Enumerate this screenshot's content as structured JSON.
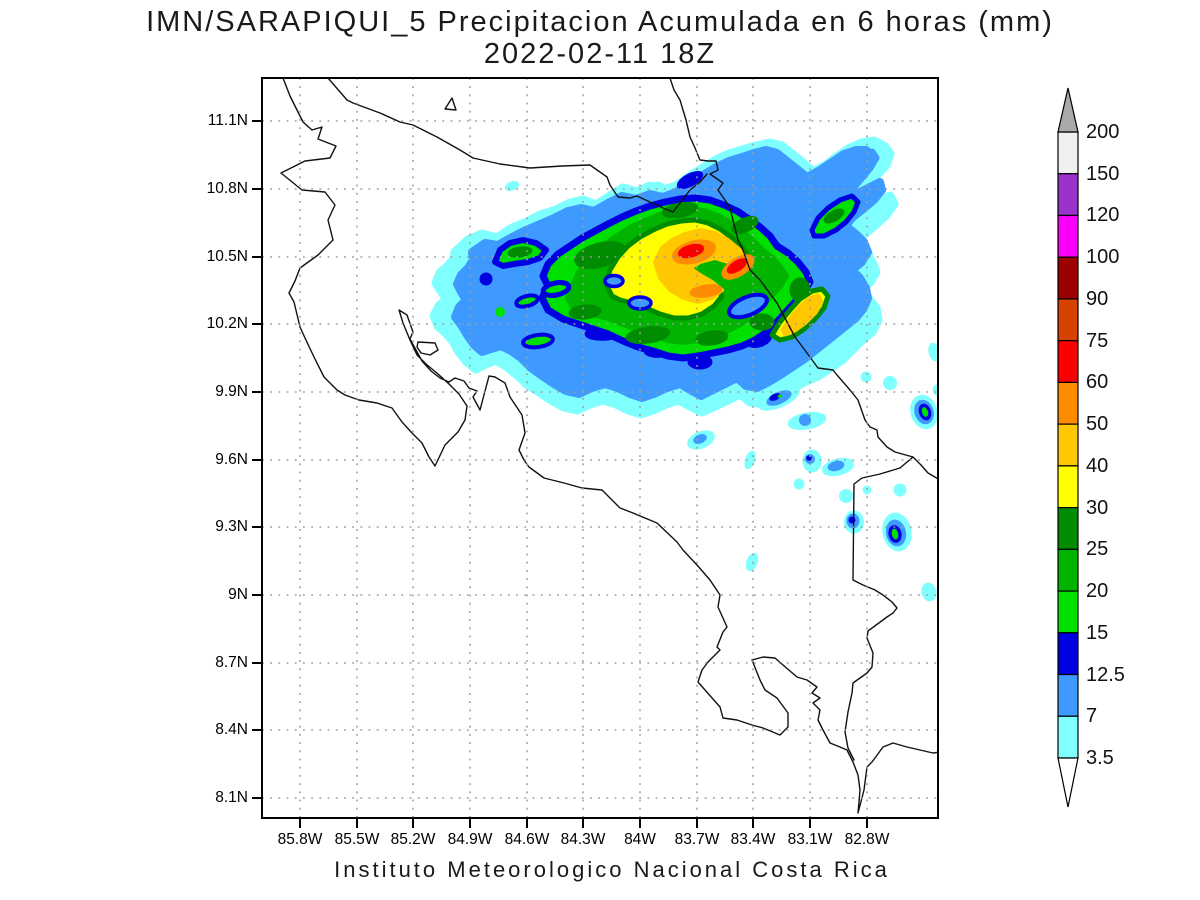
{
  "title": {
    "line1": "IMN/SARAPIQUI_5 Precipitacion Acumulada en 6 horas (mm)",
    "line2": "2022-02-11 18Z"
  },
  "caption": "Instituto Meteorologico Nacional Costa Rica",
  "axes": {
    "lat_labels": [
      "11.1N",
      "10.8N",
      "10.5N",
      "10.2N",
      "9.9N",
      "9.6N",
      "9.3N",
      "9N",
      "8.7N",
      "8.4N",
      "8.1N"
    ],
    "lon_labels": [
      "85.8W",
      "85.5W",
      "85.2W",
      "84.9W",
      "84.6W",
      "84.3W",
      "84W",
      "83.7W",
      "83.4W",
      "83.1W",
      "82.8W"
    ],
    "grid_style": "dotted"
  },
  "colorbar": {
    "boundaries": [
      "3.5",
      "7",
      "12.5",
      "15",
      "20",
      "25",
      "30",
      "40",
      "50",
      "60",
      "75",
      "90",
      "100",
      "120",
      "150",
      "200"
    ],
    "segment_colors": [
      "#80FFFF",
      "#3E9AFF",
      "#0000E0",
      "#00E000",
      "#00B400",
      "#008C00",
      "#FFFF00",
      "#FFC800",
      "#FF8C00",
      "#FB0000",
      "#D84200",
      "#9C0000",
      "#FA00FA",
      "#9933CC",
      "#F0F0F0"
    ],
    "arrow_above_color": "#A9A9A9",
    "arrow_below_color": "#FFFFFF",
    "units": "mm"
  },
  "chart_data": {
    "type": "heatmap",
    "title": "IMN/SARAPIQUI_5 Precipitacion Acumulada en 6 horas (mm)",
    "subtitle": "2022-02-11 18Z",
    "caption": "Instituto Meteorologico Nacional Costa Rica",
    "units": "mm",
    "x_ticks": [
      "85.8W",
      "85.5W",
      "85.2W",
      "84.9W",
      "84.6W",
      "84.3W",
      "84W",
      "83.7W",
      "83.4W",
      "83.1W",
      "82.8W"
    ],
    "y_ticks": [
      "11.1N",
      "10.8N",
      "10.5N",
      "10.2N",
      "9.9N",
      "9.6N",
      "9.3N",
      "9N",
      "8.7N",
      "8.4N",
      "8.1N"
    ],
    "xlim": [
      "86.0W",
      "82.45W"
    ],
    "ylim": [
      "8.0N",
      "11.3N"
    ],
    "levels_mm": [
      3.5,
      7,
      12.5,
      15,
      20,
      25,
      30,
      40,
      50,
      60,
      75,
      90,
      100,
      120,
      150,
      200
    ],
    "grid": "dotted, drawn above shading",
    "basemap": "Costa Rica coastline with Nicaragua and Panama borders, Gulf of Nicoya, Osa Peninsula, Isla Chira",
    "features": [
      {
        "name": "main-precip-band",
        "extent": "84.95W-83.05W, 10.05N-10.75N",
        "description": "elongated WSW-ENE rain band over northern Costa Rica (Sarapiqui/Caribbean slope)",
        "max_level_mm": "60-75",
        "peaks": [
          {
            "lon": "83.85W",
            "lat": "10.47N",
            "value_mm": "60-75"
          },
          {
            "lon": "83.72W",
            "lat": "10.42N",
            "value_mm": "60-75"
          }
        ],
        "secondary_cores_mm": {
          "40-50": "83.9W-83.5W 10.2N-10.5N and 83.25W 10.25N",
          "30-40": "broad yellow areas around cores"
        }
      },
      {
        "name": "northeast-streak",
        "extent": "83.45W-82.9W, 10.55N-10.95N",
        "description": "diagonal SW-NE streak offshore Caribbean coast with green core",
        "max_level_mm": "25-30"
      },
      {
        "name": "west-cores",
        "extent": "84.95W-84.6W, 10.3N-10.55N",
        "description": "green cells with dark-blue rings at west end of band",
        "max_level_mm": "25-30"
      },
      {
        "name": "scattered-cells-southeast",
        "extent": "83.6W-82.5W, 8.6N-10.0N",
        "description": "isolated small showers, cyan/blue with a few green centers near 82.5W 9.95N, 82.65W 9.4N",
        "max_level_mm": "15-20"
      }
    ],
    "legend_position": "right vertical colorbar with over/under arrows"
  }
}
